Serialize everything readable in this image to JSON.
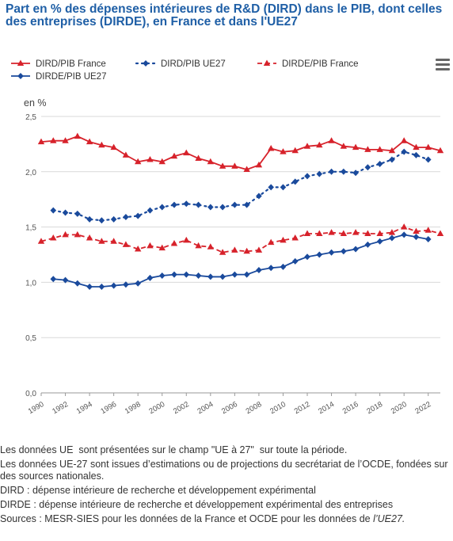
{
  "title_line1": "Part en % des dépenses intérieures de R&D (DIRD) dans le PIB, dont celles",
  "title_line2": "des entreprises (DIRDE), en France et dans l'UE27",
  "menu_icon": "hamburger-menu-icon",
  "notes": [
    "Les données UE  sont présentées sur le champ \"UE à 27\"  sur toute la période.",
    "Les données UE-27 sont issues d’estimations ou de projections du secrétariat de l’OCDE, fondées sur des sources nationales.",
    "DIRD : dépense intérieure de recherche et développement expérimental",
    "DIRDE : dépense intérieure de recherche et développement expérimental des entreprises"
  ],
  "sources_prefix": "Sources : MESR-SIES pour les données de la France et OCDE pour les données de ",
  "sources_italic": "l’UE27.",
  "chart_data": {
    "type": "line",
    "ylabel": "en %",
    "ylim": [
      0,
      2.5
    ],
    "yticks": [
      "0,0",
      "0,5",
      "1,0",
      "1,5",
      "2,0",
      "2,5"
    ],
    "xlim": [
      1990,
      2023
    ],
    "xticks": [
      "1990",
      "1992",
      "1994",
      "1996",
      "1998",
      "2000",
      "2002",
      "2004",
      "2006",
      "2008",
      "2010",
      "2012",
      "2014",
      "2016",
      "2018",
      "2020",
      "2022"
    ],
    "grid": true,
    "legend_position": "top",
    "series": [
      {
        "name": "DIRD/PIB France",
        "color": "#d7222b",
        "dash": "solid",
        "marker": "triangle",
        "x": [
          1990,
          1991,
          1992,
          1993,
          1994,
          1995,
          1996,
          1997,
          1998,
          1999,
          2000,
          2001,
          2002,
          2003,
          2004,
          2005,
          2006,
          2007,
          2008,
          2009,
          2010,
          2011,
          2012,
          2013,
          2014,
          2015,
          2016,
          2017,
          2018,
          2019,
          2020,
          2021,
          2022,
          2023
        ],
        "values": [
          2.27,
          2.28,
          2.28,
          2.32,
          2.27,
          2.24,
          2.22,
          2.15,
          2.09,
          2.11,
          2.09,
          2.14,
          2.17,
          2.12,
          2.09,
          2.05,
          2.05,
          2.02,
          2.06,
          2.21,
          2.18,
          2.19,
          2.23,
          2.24,
          2.28,
          2.23,
          2.22,
          2.2,
          2.2,
          2.19,
          2.28,
          2.22,
          2.22,
          2.19
        ]
      },
      {
        "name": "DIRD/PIB UE27",
        "color": "#1a4a9c",
        "dash": "dotted",
        "marker": "diamond",
        "x": [
          1991,
          1992,
          1993,
          1994,
          1995,
          1996,
          1997,
          1998,
          1999,
          2000,
          2001,
          2002,
          2003,
          2004,
          2005,
          2006,
          2007,
          2008,
          2009,
          2010,
          2011,
          2012,
          2013,
          2014,
          2015,
          2016,
          2017,
          2018,
          2019,
          2020,
          2021,
          2022
        ],
        "values": [
          1.65,
          1.63,
          1.62,
          1.57,
          1.56,
          1.57,
          1.59,
          1.6,
          1.65,
          1.68,
          1.7,
          1.71,
          1.7,
          1.68,
          1.68,
          1.7,
          1.7,
          1.78,
          1.86,
          1.86,
          1.91,
          1.96,
          1.98,
          2.0,
          2.0,
          1.99,
          2.04,
          2.07,
          2.11,
          2.18,
          2.15,
          2.11
        ]
      },
      {
        "name": "DIRDE/PIB France",
        "color": "#d7222b",
        "dash": "dashed",
        "marker": "triangle",
        "x": [
          1990,
          1991,
          1992,
          1993,
          1994,
          1995,
          1996,
          1997,
          1998,
          1999,
          2000,
          2001,
          2002,
          2003,
          2004,
          2005,
          2006,
          2007,
          2008,
          2009,
          2010,
          2011,
          2012,
          2013,
          2014,
          2015,
          2016,
          2017,
          2018,
          2019,
          2020,
          2021,
          2022,
          2023
        ],
        "values": [
          1.37,
          1.4,
          1.43,
          1.43,
          1.4,
          1.37,
          1.37,
          1.34,
          1.3,
          1.33,
          1.31,
          1.35,
          1.38,
          1.33,
          1.32,
          1.27,
          1.29,
          1.28,
          1.29,
          1.36,
          1.38,
          1.4,
          1.44,
          1.44,
          1.45,
          1.44,
          1.45,
          1.44,
          1.44,
          1.45,
          1.5,
          1.46,
          1.47,
          1.44
        ]
      },
      {
        "name": "DIRDE/PIB UE27",
        "color": "#1a4a9c",
        "dash": "solid",
        "marker": "diamond",
        "x": [
          1991,
          1992,
          1993,
          1994,
          1995,
          1996,
          1997,
          1998,
          1999,
          2000,
          2001,
          2002,
          2003,
          2004,
          2005,
          2006,
          2007,
          2008,
          2009,
          2010,
          2011,
          2012,
          2013,
          2014,
          2015,
          2016,
          2017,
          2018,
          2019,
          2020,
          2021,
          2022
        ],
        "values": [
          1.03,
          1.02,
          0.99,
          0.96,
          0.96,
          0.97,
          0.98,
          0.99,
          1.04,
          1.06,
          1.07,
          1.07,
          1.06,
          1.05,
          1.05,
          1.07,
          1.07,
          1.11,
          1.13,
          1.14,
          1.19,
          1.23,
          1.25,
          1.27,
          1.28,
          1.3,
          1.34,
          1.37,
          1.4,
          1.43,
          1.41,
          1.39
        ]
      }
    ]
  }
}
